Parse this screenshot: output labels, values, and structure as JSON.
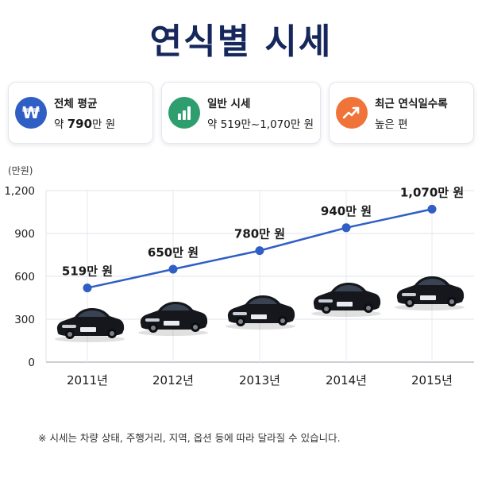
{
  "title": "연식별 시세",
  "cards": [
    {
      "line1": "전체 평균",
      "line2_prefix": "약 ",
      "line2_strong": "790",
      "line2_suffix": "만 원",
      "icon": "won-coin-icon",
      "color": "#2f5fc4"
    },
    {
      "line1": "일반 시세",
      "line2": "약 519만~1,070만 원",
      "icon": "bar-chart-icon",
      "color": "#2f9e6e"
    },
    {
      "line1": "최근 연식일수록",
      "line2": "높은 편",
      "icon": "trend-up-icon",
      "color": "#f0743a"
    }
  ],
  "icon_glyphs": {
    "won": "₩"
  },
  "chart_data": {
    "type": "line",
    "ylabel": "(만원)",
    "categories": [
      "2011년",
      "2012년",
      "2013년",
      "2014년",
      "2015년"
    ],
    "values": [
      519,
      650,
      780,
      940,
      1070
    ],
    "data_labels": [
      "519만 원",
      "650만 원",
      "780만 원",
      "940만 원",
      "1,070만 원"
    ],
    "yticks": [
      0,
      300,
      600,
      900,
      1200
    ],
    "ytick_labels": [
      "0",
      "300",
      "600",
      "900",
      "1,200"
    ],
    "ylim": [
      0,
      1200
    ],
    "grid": true,
    "line_color": "#2f5fc4",
    "marker_color": "#2f5fc4"
  },
  "footnote": "※ 시세는 차량 상태, 주행거리, 지역, 옵션 등에 따라 달라질 수 있습니다."
}
